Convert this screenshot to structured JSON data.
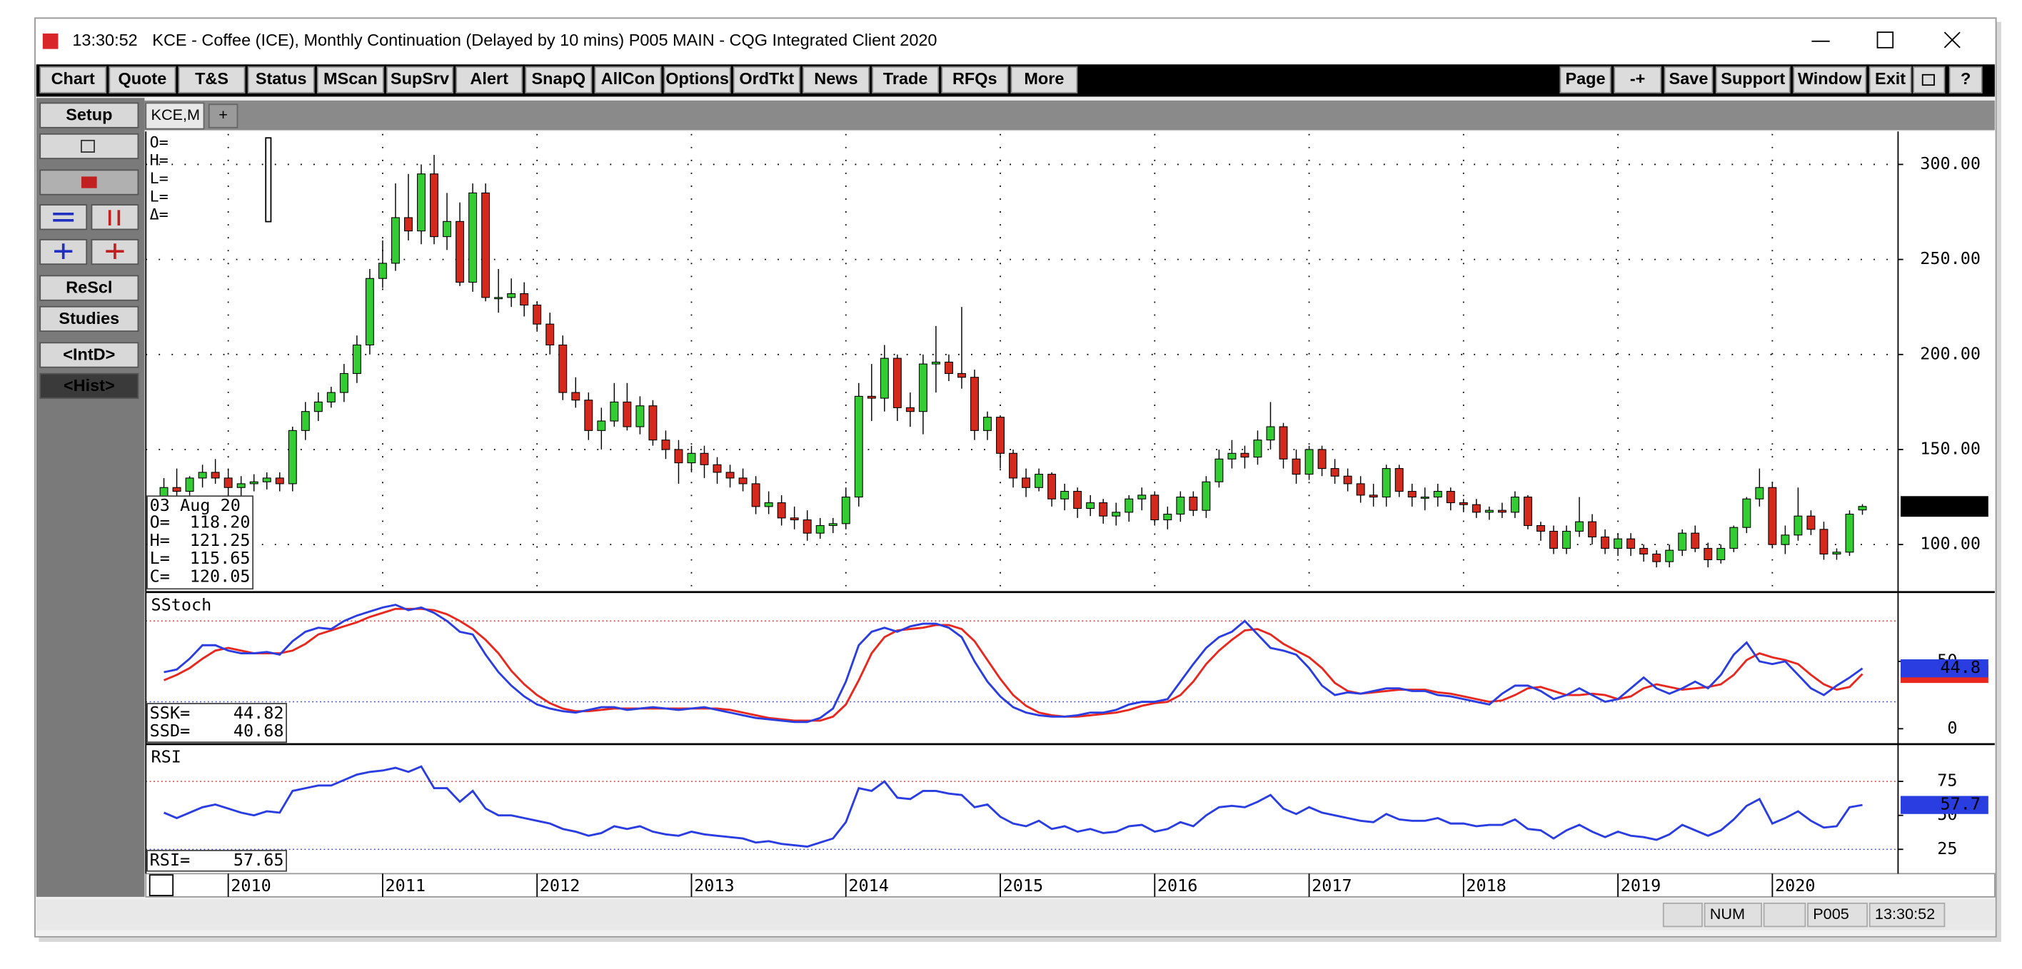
{
  "window": {
    "time": "13:30:52",
    "title": "KCE - Coffee (ICE), Monthly Continuation (Delayed by 10 mins)   P005 MAIN - CQG Integrated Client 2020"
  },
  "toolbar": [
    "Chart",
    "Quote",
    "T&S",
    "Status",
    "MScan",
    "SupSrv",
    "Alert",
    "SnapQ",
    "AllCon",
    "Options",
    "OrdTkt",
    "News",
    "Trade",
    "RFQs",
    "More"
  ],
  "toolbar_right": [
    "Page",
    "-+",
    "Save",
    "Support",
    "Window",
    "Exit"
  ],
  "sidebar": [
    "Setup",
    "ReScl",
    "Studies",
    "<IntD>",
    "<Hist>"
  ],
  "tabs": [
    "KCE,M",
    "+"
  ],
  "cursor_info": [
    "O=",
    "H=",
    "L=",
    "L=",
    "Δ="
  ],
  "status_bar": [
    "NUM",
    "P005",
    "13:30:52"
  ],
  "chart_data": [
    {
      "type": "candlestick",
      "x": [
        "2009-08",
        "2009-09",
        "2009-10",
        "2009-11",
        "2009-12",
        "2010-01",
        "2010-02",
        "2010-03",
        "2010-04",
        "2010-05",
        "2010-06",
        "2010-07",
        "2010-08",
        "2010-09",
        "2010-10",
        "2010-11",
        "2010-12",
        "2011-01",
        "2011-02",
        "2011-03",
        "2011-04",
        "2011-05",
        "2011-06",
        "2011-07",
        "2011-08",
        "2011-09",
        "2011-10",
        "2011-11",
        "2011-12",
        "2012-01",
        "2012-02",
        "2012-03",
        "2012-04",
        "2012-05",
        "2012-06",
        "2012-07",
        "2012-08",
        "2012-09",
        "2012-10",
        "2012-11",
        "2012-12",
        "2013-01",
        "2013-02",
        "2013-03",
        "2013-04",
        "2013-05",
        "2013-06",
        "2013-07",
        "2013-08",
        "2013-09",
        "2013-10",
        "2013-11",
        "2013-12",
        "2014-01",
        "2014-02",
        "2014-03",
        "2014-04",
        "2014-05",
        "2014-06",
        "2014-07",
        "2014-08",
        "2014-09",
        "2014-10",
        "2014-11",
        "2014-12",
        "2015-01",
        "2015-02",
        "2015-03",
        "2015-04",
        "2015-05",
        "2015-06",
        "2015-07",
        "2015-08",
        "2015-09",
        "2015-10",
        "2015-11",
        "2015-12",
        "2016-01",
        "2016-02",
        "2016-03",
        "2016-04",
        "2016-05",
        "2016-06",
        "2016-07",
        "2016-08",
        "2016-09",
        "2016-10",
        "2016-11",
        "2016-12",
        "2017-01",
        "2017-02",
        "2017-03",
        "2017-04",
        "2017-05",
        "2017-06",
        "2017-07",
        "2017-08",
        "2017-09",
        "2017-10",
        "2017-11",
        "2017-12",
        "2018-01",
        "2018-02",
        "2018-03",
        "2018-04",
        "2018-05",
        "2018-06",
        "2018-07",
        "2018-08",
        "2018-09",
        "2018-10",
        "2018-11",
        "2018-12",
        "2019-01",
        "2019-02",
        "2019-03",
        "2019-04",
        "2019-05",
        "2019-06",
        "2019-07",
        "2019-08",
        "2019-09",
        "2019-10",
        "2019-11",
        "2019-12",
        "2020-01",
        "2020-02",
        "2020-03",
        "2020-04",
        "2020-05",
        "2020-06",
        "2020-07",
        "2020-08"
      ],
      "open": [
        125,
        130,
        128,
        135,
        138,
        135,
        130,
        132,
        133,
        135,
        132,
        160,
        170,
        175,
        180,
        190,
        205,
        240,
        248,
        272,
        265,
        295,
        262,
        270,
        238,
        285,
        230,
        230,
        232,
        226,
        216,
        205,
        180,
        176,
        160,
        165,
        175,
        162,
        173,
        155,
        150,
        143,
        148,
        142,
        138,
        135,
        132,
        120,
        122,
        114,
        113,
        106,
        110,
        111,
        125,
        178,
        177,
        198,
        172,
        170,
        195,
        196,
        190,
        188,
        160,
        167,
        148,
        135,
        130,
        137,
        124,
        128,
        119,
        122,
        115,
        117,
        124,
        126,
        113,
        116,
        125,
        118,
        133,
        145,
        148,
        146,
        155,
        162,
        145,
        137,
        150,
        140,
        136,
        132,
        126,
        125,
        140,
        128,
        125,
        125,
        128,
        122,
        121,
        117,
        118,
        117,
        125,
        110,
        107,
        98,
        107,
        112,
        104,
        98,
        103,
        98,
        95,
        91,
        97,
        106,
        98,
        92,
        98,
        109,
        124,
        130,
        100,
        105,
        115,
        108,
        95,
        96,
        118.2
      ],
      "high": [
        135,
        140,
        136,
        142,
        145,
        140,
        136,
        137,
        138,
        138,
        162,
        175,
        180,
        183,
        195,
        210,
        245,
        260,
        290,
        295,
        300,
        305,
        285,
        280,
        290,
        290,
        245,
        240,
        238,
        228,
        222,
        210,
        188,
        180,
        172,
        185,
        185,
        178,
        176,
        160,
        155,
        152,
        152,
        146,
        142,
        140,
        136,
        128,
        126,
        120,
        118,
        114,
        114,
        130,
        185,
        195,
        205,
        200,
        180,
        200,
        215,
        200,
        225,
        192,
        170,
        168,
        150,
        140,
        140,
        138,
        132,
        130,
        126,
        124,
        122,
        126,
        130,
        128,
        120,
        128,
        128,
        136,
        150,
        155,
        152,
        160,
        175,
        164,
        150,
        152,
        152,
        145,
        140,
        136,
        132,
        142,
        142,
        132,
        130,
        132,
        130,
        124,
        124,
        120,
        122,
        128,
        126,
        112,
        110,
        110,
        125,
        116,
        108,
        106,
        106,
        100,
        97,
        100,
        108,
        110,
        101,
        100,
        110,
        125,
        140,
        133,
        110,
        130,
        118,
        112,
        98,
        118,
        121.25
      ],
      "low": [
        120,
        125,
        124,
        130,
        132,
        126,
        125,
        128,
        129,
        128,
        128,
        155,
        165,
        172,
        175,
        185,
        200,
        235,
        244,
        260,
        258,
        258,
        255,
        236,
        233,
        228,
        222,
        225,
        220,
        212,
        200,
        176,
        172,
        155,
        150,
        162,
        160,
        158,
        152,
        145,
        132,
        138,
        135,
        132,
        130,
        128,
        116,
        116,
        110,
        108,
        102,
        103,
        106,
        108,
        120,
        165,
        170,
        165,
        162,
        158,
        180,
        186,
        182,
        155,
        155,
        140,
        130,
        125,
        128,
        120,
        118,
        114,
        115,
        111,
        110,
        112,
        118,
        110,
        108,
        112,
        115,
        114,
        130,
        140,
        140,
        142,
        150,
        140,
        132,
        134,
        136,
        132,
        128,
        122,
        120,
        120,
        125,
        120,
        118,
        120,
        118,
        117,
        114,
        113,
        114,
        114,
        108,
        102,
        95,
        95,
        104,
        100,
        95,
        94,
        94,
        91,
        88,
        88,
        94,
        96,
        88,
        90,
        96,
        106,
        120,
        98,
        95,
        102,
        105,
        92,
        92,
        94,
        115.65
      ],
      "close": [
        130,
        128,
        135,
        138,
        135,
        130,
        132,
        133,
        135,
        132,
        160,
        170,
        175,
        180,
        190,
        205,
        240,
        248,
        272,
        265,
        295,
        262,
        270,
        238,
        285,
        230,
        230,
        232,
        226,
        216,
        205,
        180,
        176,
        160,
        165,
        175,
        162,
        173,
        155,
        150,
        143,
        148,
        142,
        138,
        135,
        132,
        120,
        122,
        114,
        113,
        106,
        110,
        111,
        125,
        178,
        177,
        198,
        172,
        170,
        195,
        196,
        190,
        188,
        160,
        167,
        148,
        135,
        130,
        137,
        124,
        128,
        119,
        122,
        115,
        117,
        124,
        126,
        113,
        116,
        125,
        118,
        133,
        145,
        148,
        146,
        155,
        162,
        145,
        137,
        150,
        140,
        136,
        132,
        126,
        125,
        140,
        128,
        125,
        125,
        128,
        122,
        121,
        117,
        118,
        117,
        125,
        110,
        107,
        98,
        107,
        112,
        104,
        98,
        103,
        98,
        95,
        91,
        97,
        106,
        98,
        92,
        98,
        109,
        124,
        130,
        100,
        105,
        115,
        108,
        95,
        96,
        116,
        120.05
      ],
      "up_color": "#33cc33",
      "down_color": "#d42a1e",
      "ylim": [
        76,
        316
      ],
      "yticks": [
        {
          "value": 100,
          "label": "100.00"
        },
        {
          "value": 150,
          "label": "150.00"
        },
        {
          "value": 200,
          "label": "200.00"
        },
        {
          "value": 250,
          "label": "250.00"
        },
        {
          "value": 300,
          "label": "300.00"
        }
      ],
      "xticks": [
        2010,
        2011,
        2012,
        2013,
        2014,
        2015,
        2016,
        2017,
        2018,
        2019,
        2020
      ],
      "grid": true,
      "last_label": "120.05",
      "data_box": {
        "date": "03 Aug 20",
        "labels": [
          "O=",
          "H=",
          "L=",
          "C="
        ],
        "value_labels": [
          "118.20",
          "121.25",
          "115.65",
          "120.05"
        ]
      }
    },
    {
      "type": "line",
      "title": "SStoch",
      "ylim": [
        -10,
        100
      ],
      "yticks": [
        0,
        50
      ],
      "ref_lines": [
        {
          "value": 80,
          "color": "#e03030"
        },
        {
          "value": 20,
          "color": "#3040e0"
        }
      ],
      "series": [
        {
          "name": "SSK=",
          "color": "#2a3de0",
          "last_label": "44.82",
          "tag": "44.8",
          "values": [
            42,
            44,
            52,
            62,
            62,
            58,
            56,
            56,
            57,
            55,
            65,
            72,
            75,
            74,
            80,
            84,
            87,
            90,
            92,
            88,
            90,
            86,
            80,
            72,
            70,
            55,
            42,
            32,
            24,
            18,
            15,
            13,
            12,
            14,
            16,
            16,
            14,
            15,
            16,
            15,
            14,
            15,
            16,
            14,
            12,
            10,
            8,
            7,
            6,
            5,
            5,
            8,
            15,
            35,
            62,
            72,
            75,
            72,
            76,
            78,
            78,
            75,
            68,
            50,
            35,
            24,
            16,
            12,
            10,
            9,
            9,
            10,
            12,
            12,
            14,
            18,
            20,
            20,
            22,
            35,
            48,
            60,
            68,
            72,
            80,
            70,
            60,
            58,
            55,
            45,
            32,
            25,
            27,
            26,
            28,
            30,
            30,
            28,
            28,
            25,
            24,
            22,
            20,
            18,
            26,
            32,
            32,
            28,
            22,
            25,
            30,
            25,
            20,
            22,
            30,
            38,
            30,
            26,
            30,
            35,
            30,
            40,
            55,
            64,
            50,
            48,
            50,
            40,
            30,
            25,
            32,
            38,
            44.82
          ]
        },
        {
          "name": "SSD=",
          "color": "#e8281e",
          "last_label": "40.68",
          "values": [
            36,
            40,
            45,
            52,
            58,
            60,
            58,
            56,
            56,
            56,
            58,
            63,
            70,
            73,
            76,
            79,
            83,
            86,
            89,
            89,
            89,
            88,
            85,
            80,
            74,
            66,
            56,
            43,
            33,
            25,
            19,
            15,
            13,
            13,
            14,
            15,
            15,
            15,
            15,
            15,
            15,
            15,
            15,
            15,
            14,
            12,
            10,
            8,
            7,
            6,
            6,
            6,
            9,
            18,
            36,
            56,
            68,
            73,
            74,
            75,
            77,
            77,
            74,
            65,
            51,
            37,
            25,
            17,
            12,
            10,
            9,
            9,
            10,
            11,
            12,
            14,
            17,
            19,
            20,
            25,
            35,
            48,
            58,
            66,
            73,
            74,
            70,
            63,
            58,
            53,
            45,
            34,
            28,
            26,
            27,
            28,
            29,
            29,
            29,
            27,
            26,
            24,
            22,
            20,
            21,
            25,
            30,
            31,
            28,
            25,
            25,
            26,
            25,
            22,
            24,
            30,
            33,
            31,
            29,
            30,
            31,
            33,
            40,
            51,
            56,
            53,
            51,
            48,
            40,
            33,
            29,
            31,
            40.68
          ]
        }
      ]
    },
    {
      "type": "line",
      "title": "RSI",
      "ylim": [
        9,
        101
      ],
      "yticks": [
        25,
        50,
        75
      ],
      "ref_lines": [
        {
          "value": 75,
          "color": "#e03030"
        },
        {
          "value": 25,
          "color": "#3040e0"
        }
      ],
      "series": [
        {
          "name": "RSI=",
          "color": "#2a3de0",
          "last_label": "57.65",
          "tag": "57.7",
          "values": [
            52,
            48,
            52,
            56,
            58,
            55,
            52,
            50,
            53,
            52,
            68,
            70,
            72,
            72,
            76,
            80,
            82,
            83,
            85,
            82,
            86,
            70,
            70,
            60,
            68,
            55,
            50,
            50,
            48,
            46,
            44,
            40,
            38,
            35,
            37,
            42,
            40,
            42,
            38,
            36,
            35,
            38,
            36,
            35,
            34,
            33,
            30,
            31,
            29,
            28,
            27,
            30,
            33,
            45,
            70,
            68,
            75,
            63,
            62,
            68,
            68,
            66,
            65,
            56,
            58,
            49,
            44,
            42,
            46,
            40,
            42,
            38,
            40,
            37,
            38,
            42,
            43,
            38,
            40,
            45,
            42,
            50,
            56,
            57,
            56,
            60,
            65,
            55,
            51,
            56,
            52,
            50,
            48,
            46,
            45,
            51,
            47,
            46,
            46,
            48,
            44,
            44,
            42,
            43,
            43,
            47,
            40,
            39,
            33,
            39,
            43,
            38,
            34,
            38,
            35,
            34,
            32,
            36,
            43,
            39,
            35,
            39,
            47,
            57,
            62,
            44,
            48,
            53,
            46,
            41,
            42,
            56,
            57.65
          ]
        }
      ]
    }
  ]
}
